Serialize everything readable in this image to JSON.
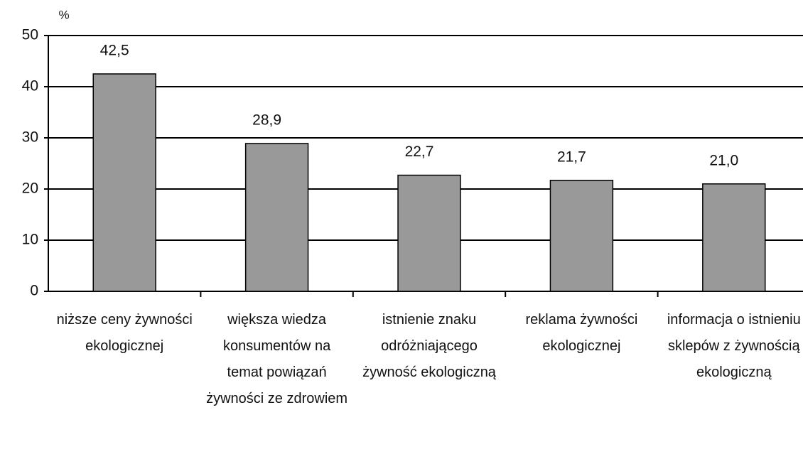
{
  "chart_data": {
    "type": "bar",
    "y_axis_label": "%",
    "categories": [
      "niższe ceny żywności ekologicznej",
      "większa wiedza konsumentów na temat powiązań żywności ze zdrowiem",
      "istnienie znaku odróżniającego żywność ekologiczną",
      "reklama żywności ekologicznej",
      "informacja o istnieniu sklepów z żywnością ekologiczną"
    ],
    "values": [
      42.5,
      28.9,
      22.7,
      21.7,
      21.0
    ],
    "value_labels": [
      "42,5",
      "28,9",
      "22,7",
      "21,7",
      "21,0"
    ],
    "color": "#999999",
    "ylim": [
      0,
      50
    ],
    "yticks": [
      0,
      10,
      20,
      30,
      40,
      50
    ],
    "grid": true
  }
}
